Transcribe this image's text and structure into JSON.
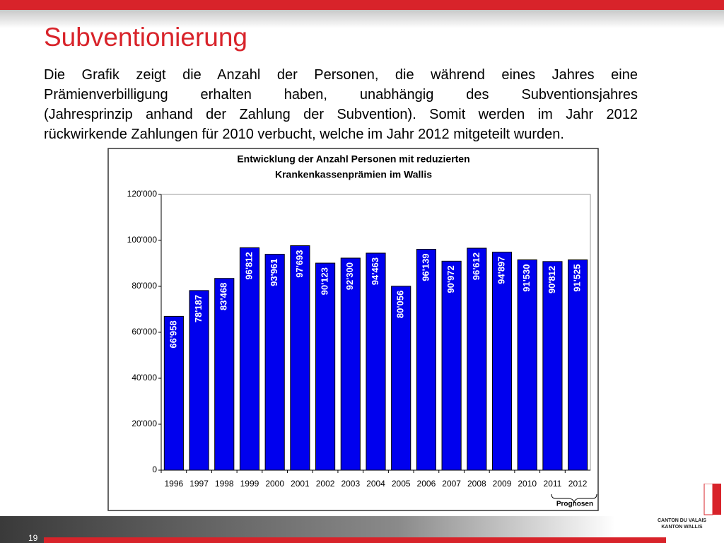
{
  "header": {
    "title": "Subventionierung"
  },
  "paragraph": [
    "Die Grafik zeigt die Anzahl der Personen, die während eines Jahres eine",
    "Prämienverbilligung erhalten haben, unabhängig des Subventionsjahres",
    "(Jahresprinzip anhand der Zahlung der Subvention). Somit werden im Jahr 2012",
    "rückwirkende Zahlungen für 2010 verbucht, welche im Jahr 2012 mitgeteilt wurden."
  ],
  "chart_data": {
    "type": "bar",
    "title": [
      "Entwicklung der Anzahl Personen mit reduzierten",
      "Krankenkassenprämien im Wallis"
    ],
    "categories": [
      "1996",
      "1997",
      "1998",
      "1999",
      "2000",
      "2001",
      "2002",
      "2003",
      "2004",
      "2005",
      "2006",
      "2007",
      "2008",
      "2009",
      "2010",
      "2011",
      "2012"
    ],
    "values": [
      66958,
      78187,
      83468,
      96812,
      93961,
      97693,
      90123,
      92300,
      94463,
      80056,
      96139,
      90972,
      96612,
      94897,
      91530,
      90812,
      91525
    ],
    "value_labels": [
      "66'958",
      "78'187",
      "83'468",
      "96'812",
      "93'961",
      "97'693",
      "90'123",
      "92'300",
      "94'463",
      "80'056",
      "96'139",
      "90'972",
      "96'612",
      "94'897",
      "91'530",
      "90'812",
      "91'525"
    ],
    "color": "#0000ee",
    "ylim": [
      0,
      120000
    ],
    "yticks": [
      0,
      {
        "value": 20000,
        "label": "20'000"
      },
      {
        "value": 40000,
        "label": "40'000"
      },
      {
        "value": 60000,
        "label": "60'000"
      },
      {
        "value": 80000,
        "label": "80'000"
      },
      {
        "value": 100000,
        "label": "100'000"
      },
      {
        "value": 120000,
        "label": "120'000"
      }
    ],
    "grid": false,
    "annotation": "Prognosen"
  },
  "footer": {
    "page_number": "19",
    "logo": [
      "CANTON DU VALAIS",
      "KANTON WALLIS"
    ]
  }
}
